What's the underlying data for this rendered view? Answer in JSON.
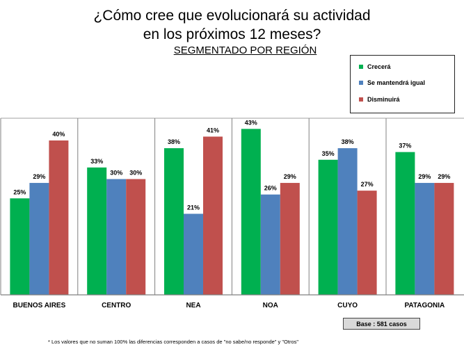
{
  "title_line1": "¿Cómo cree que evolucionará su actividad",
  "title_line2": "en los próximos 12 meses?",
  "subtitle": "SEGMENTADO POR REGIÓN",
  "legend": [
    {
      "label": "Crecerá",
      "color": "#00b050"
    },
    {
      "label": "Se mantendrá igual",
      "color": "#4f81bd"
    },
    {
      "label": "Disminuirá",
      "color": "#c0504d"
    }
  ],
  "base_note": "Base : 581 casos",
  "footnote": "* Los valores que no suman 100% las diferencias corresponden a casos de \"no sabe/no responde\" y \"Otros\"",
  "chart_data": {
    "type": "bar",
    "categories": [
      "BUENOS AIRES",
      "CENTRO",
      "NEA",
      "NOA",
      "CUYO",
      "PATAGONIA"
    ],
    "series": [
      {
        "name": "Crecerá",
        "color": "#00b050",
        "values": [
          25,
          33,
          38,
          43,
          35,
          37
        ]
      },
      {
        "name": "Se mantendrá igual",
        "color": "#4f81bd",
        "values": [
          29,
          30,
          21,
          26,
          38,
          29
        ]
      },
      {
        "name": "Disminuirá",
        "color": "#c0504d",
        "values": [
          40,
          30,
          41,
          29,
          27,
          29
        ]
      }
    ],
    "value_suffix": "%",
    "ylim": [
      0,
      45
    ],
    "grid": false,
    "legend_position": "top-right"
  }
}
